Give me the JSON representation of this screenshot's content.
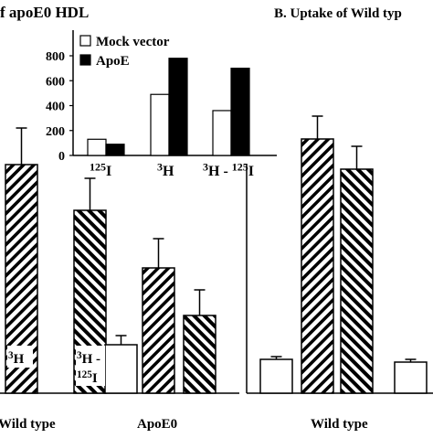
{
  "panel_a_title": "f apoE0 HDL",
  "panel_b_title": "B. Uptake of Wild typ",
  "chart_data": [
    {
      "id": "inset",
      "type": "bar",
      "categories": [
        {
          "base": "125",
          "suffix": "I"
        },
        {
          "base": "3",
          "suffix": "H"
        },
        {
          "base": "3",
          "suffix": "H - ",
          "base2": "125",
          "suffix2": "I"
        }
      ],
      "series": [
        {
          "name": "Mock vector",
          "fill": "white",
          "values": [
            130,
            490,
            360
          ]
        },
        {
          "name": "ApoE",
          "fill": "black",
          "values": [
            90,
            780,
            700
          ]
        }
      ],
      "ylim": [
        0,
        800
      ],
      "yticks": [
        "0",
        "200",
        "400",
        "600",
        "800"
      ],
      "ytick_values": [
        0,
        200,
        400,
        600,
        800
      ]
    },
    {
      "id": "panel-a",
      "type": "bar",
      "ylim": [
        0,
        290
      ],
      "groups": [
        {
          "label": "Wild type",
          "bars": [
            {
              "pattern": "hatch-right",
              "value": 250,
              "err": 40
            },
            {
              "pattern": "hatch-left",
              "value": 200,
              "err": 35
            }
          ]
        },
        {
          "label": "ApoE0",
          "bars": [
            {
              "pattern": "white",
              "value": 53,
              "err": 10
            },
            {
              "pattern": "hatch-right",
              "value": 137,
              "err": 32
            },
            {
              "pattern": "hatch-left",
              "value": 85,
              "err": 28
            }
          ]
        }
      ],
      "bar_labels": [
        {
          "base": "3",
          "suffix": "H"
        },
        {
          "base": "3",
          "suffix": "H -",
          "line2_base": "125",
          "line2_suffix": "I"
        }
      ]
    },
    {
      "id": "panel-b",
      "type": "bar",
      "ylim": [
        0,
        290
      ],
      "groups": [
        {
          "label": "Wild type",
          "bars": [
            {
              "pattern": "white",
              "value": 37,
              "err": 3
            },
            {
              "pattern": "hatch-right",
              "value": 278,
              "err": 25
            },
            {
              "pattern": "hatch-left",
              "value": 245,
              "err": 25
            },
            {
              "pattern": "white",
              "value": 34,
              "err": 3
            }
          ]
        }
      ]
    }
  ]
}
